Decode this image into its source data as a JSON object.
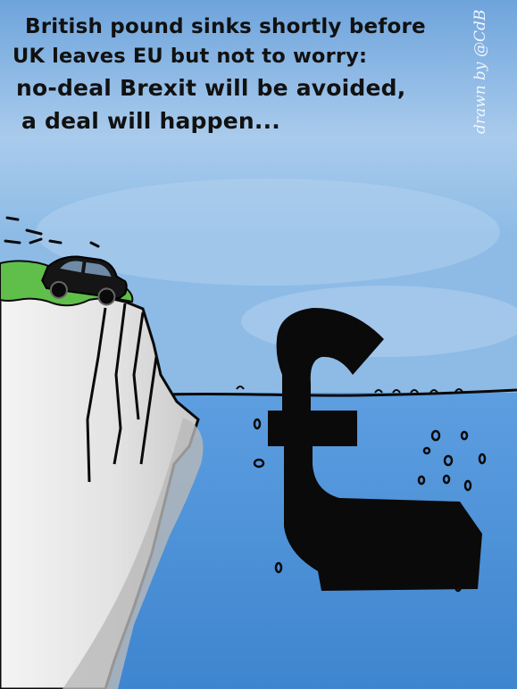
{
  "caption": {
    "line1": "British pound sinks shortly before",
    "line2": "UK leaves EU but not to worry:",
    "line3": "no-deal Brexit will be avoided,",
    "line4": "a deal will happen..."
  },
  "signature": "drawn by @CdB",
  "symbol": "£",
  "colors": {
    "sky": "#7fb0e2",
    "sea": "#4f93d6",
    "cliff": "#ececec",
    "grass": "#5fbf4a",
    "ink": "#0a0a0a"
  },
  "icons": [
    "taxi-icon",
    "pound-sign-icon",
    "bubble-icon"
  ]
}
